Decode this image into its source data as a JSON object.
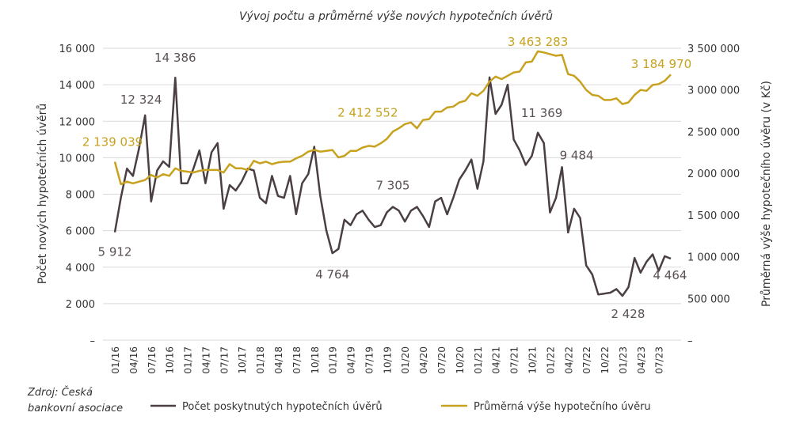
{
  "chart_data": {
    "type": "line",
    "title": "Vývoj počtu a průměrné výše nových hypotečních úvěrů",
    "source": [
      "Zdroj: Česká",
      "bankovní asociace"
    ],
    "ylabel_left": "Počet nových hypotečních úvěrů",
    "ylabel_right": "Průměrná výše hypotečního úvěru (v Kč)",
    "ylim_left": [
      0,
      16000
    ],
    "ylim_right": [
      0,
      3500000
    ],
    "yticks_left": [
      "–",
      "2 000",
      "4 000",
      "6 000",
      "8 000",
      "10 000",
      "12 000",
      "14 000",
      "16 000"
    ],
    "yticks_right": [
      "–",
      "500 000",
      "1 000 000",
      "1 500 000",
      "2 000 000",
      "2 500 000",
      "3 000 000",
      "3 500 000"
    ],
    "xtick_labels": [
      "01/16",
      "04/16",
      "07/16",
      "10/16",
      "01/17",
      "04/17",
      "07/17",
      "10/17",
      "01/18",
      "04/18",
      "07/18",
      "10/18",
      "01/19",
      "04/19",
      "07/19",
      "10/19",
      "01/20",
      "04/20",
      "07/20",
      "10/20",
      "01/21",
      "04/21",
      "07/21",
      "10/21",
      "01/22",
      "04/22",
      "07/22",
      "10/22",
      "01/23",
      "04/23",
      "07/23"
    ],
    "grid": true,
    "legend_position": "bottom",
    "series": [
      {
        "name": "Počet poskytnutých hypotečních úvěrů",
        "axis": "left",
        "color": "#4a3f44",
        "values": [
          5912,
          7800,
          9400,
          9000,
          10500,
          12324,
          7600,
          9300,
          9800,
          9500,
          14386,
          8600,
          8600,
          9400,
          10400,
          8600,
          10300,
          10800,
          7200,
          8500,
          8200,
          8700,
          9400,
          9300,
          7800,
          7500,
          9000,
          7900,
          7800,
          9000,
          6900,
          8600,
          9100,
          10600,
          7900,
          6000,
          4764,
          5000,
          6600,
          6300,
          6900,
          7100,
          6600,
          6200,
          6300,
          7000,
          7305,
          7100,
          6500,
          7100,
          7300,
          6800,
          6200,
          7600,
          7800,
          6900,
          7800,
          8800,
          9300,
          9900,
          8300,
          9800,
          14400,
          12400,
          12900,
          14000,
          11000,
          10400,
          9600,
          10100,
          11369,
          10800,
          7000,
          7800,
          9484,
          5900,
          7200,
          6700,
          4100,
          3600,
          2500,
          2550,
          2600,
          2800,
          2428,
          2900,
          4500,
          3700,
          4300,
          4700,
          3800,
          4600,
          4464
        ],
        "labels": [
          {
            "index": 0,
            "text": "5 912"
          },
          {
            "index": 5,
            "text": "12 324"
          },
          {
            "index": 10,
            "text": "14 386"
          },
          {
            "index": 36,
            "text": "4 764"
          },
          {
            "index": 46,
            "text": "7 305"
          },
          {
            "index": 70,
            "text": "11 369"
          },
          {
            "index": 74,
            "text": "9 484"
          },
          {
            "index": 84,
            "text": "2 428"
          },
          {
            "index": 92,
            "text": "4 464"
          }
        ]
      },
      {
        "name": "Průměrná výše hypotečního úvěru",
        "axis": "right",
        "color": "#c8a21e",
        "values": [
          2139039,
          1870000,
          1900000,
          1880000,
          1900000,
          1920000,
          1980000,
          1950000,
          1990000,
          1970000,
          2060000,
          2030000,
          2020000,
          2010000,
          2030000,
          2040000,
          2040000,
          2040000,
          2010000,
          2110000,
          2060000,
          2060000,
          2040000,
          2150000,
          2120000,
          2140000,
          2110000,
          2130000,
          2140000,
          2140000,
          2180000,
          2210000,
          2260000,
          2280000,
          2260000,
          2270000,
          2280000,
          2190000,
          2210000,
          2270000,
          2270000,
          2310000,
          2330000,
          2320000,
          2360000,
          2412552,
          2500000,
          2540000,
          2590000,
          2610000,
          2540000,
          2640000,
          2650000,
          2740000,
          2740000,
          2790000,
          2800000,
          2850000,
          2870000,
          2960000,
          2930000,
          2990000,
          3100000,
          3160000,
          3130000,
          3170000,
          3210000,
          3220000,
          3330000,
          3340000,
          3463283,
          3450000,
          3430000,
          3410000,
          3420000,
          3190000,
          3170000,
          3100000,
          3000000,
          2940000,
          2930000,
          2880000,
          2880000,
          2900000,
          2830000,
          2850000,
          2940000,
          3000000,
          2990000,
          3060000,
          3070000,
          3110000,
          3184970
        ],
        "labels": [
          {
            "index": 0,
            "text": "2 139 039"
          },
          {
            "index": 45,
            "text": "2 412 552"
          },
          {
            "index": 70,
            "text": "3 463 283"
          },
          {
            "index": 92,
            "text": "3 184 970"
          }
        ]
      }
    ]
  }
}
